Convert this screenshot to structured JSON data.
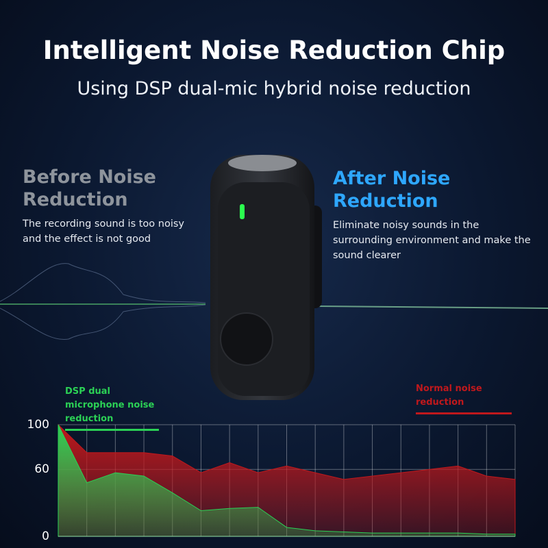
{
  "header": {
    "title": "Intelligent Noise Reduction Chip",
    "subtitle": "Using DSP dual-mic hybrid noise reduction"
  },
  "before": {
    "title": "Before Noise Reduction",
    "text": "The recording sound is too noisy and the effect is not good"
  },
  "after": {
    "title": "After Noise Reduction",
    "text": "Eliminate noisy sounds in the surrounding environment and make the sound clearer"
  },
  "chart_data": {
    "type": "area",
    "x": [
      0,
      1,
      2,
      3,
      4,
      5,
      6,
      7,
      8,
      9,
      10,
      11,
      12,
      13,
      14,
      15,
      16
    ],
    "xlim": [
      0,
      16
    ],
    "ylim": [
      0,
      100
    ],
    "yticks": [
      0,
      60,
      100
    ],
    "grid": true,
    "series": [
      {
        "name": "Normal noise reduction",
        "color": "#c0181c",
        "values": [
          100,
          75,
          75,
          75,
          72,
          57,
          66,
          57,
          63,
          57,
          51,
          54,
          57,
          60,
          63,
          54,
          51
        ]
      },
      {
        "name": "DSP dual microphone noise reduction",
        "color": "#2bd155",
        "values": [
          100,
          48,
          57,
          54,
          39,
          23,
          25,
          26,
          8,
          5,
          4,
          3,
          3,
          3,
          3,
          2,
          2
        ]
      }
    ]
  }
}
